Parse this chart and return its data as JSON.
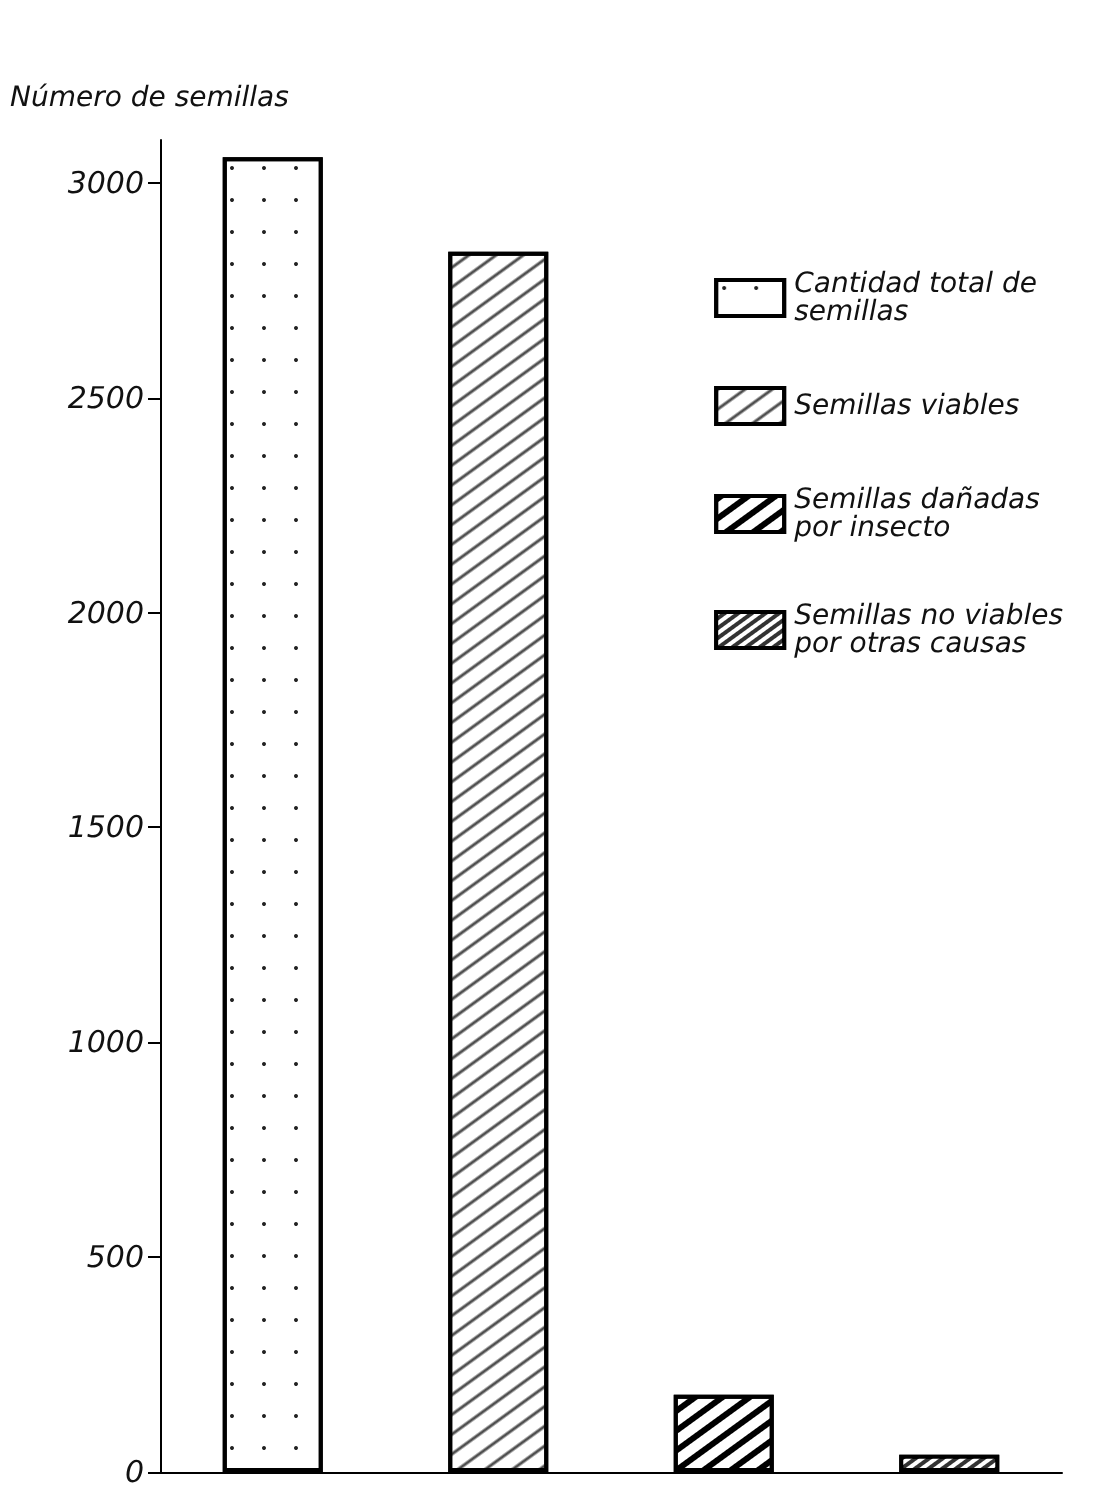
{
  "chart_data": {
    "type": "bar",
    "ylabel": "Número de semillas",
    "categories": [
      null,
      null,
      null,
      null
    ],
    "series": [
      {
        "name": "Cantidad total de semillas",
        "color": "#ffffff",
        "values": [
          3060,
          null,
          null,
          null
        ]
      },
      {
        "name": "Semillas viables",
        "color": "#ffffff",
        "values": [
          null,
          2840,
          null,
          null
        ]
      },
      {
        "name": "Semillas dañadas por insecto",
        "color": "#ffffff",
        "values": [
          null,
          null,
          180,
          null
        ]
      },
      {
        "name": "Semillas no viables por otras causas",
        "color": "#333333",
        "values": [
          null,
          null,
          null,
          40
        ]
      }
    ],
    "ylim": [
      0,
      3100
    ],
    "yticks": [
      0,
      500,
      1000,
      1500,
      2000,
      2500,
      3000
    ],
    "grid": false,
    "legend": "top right"
  }
}
